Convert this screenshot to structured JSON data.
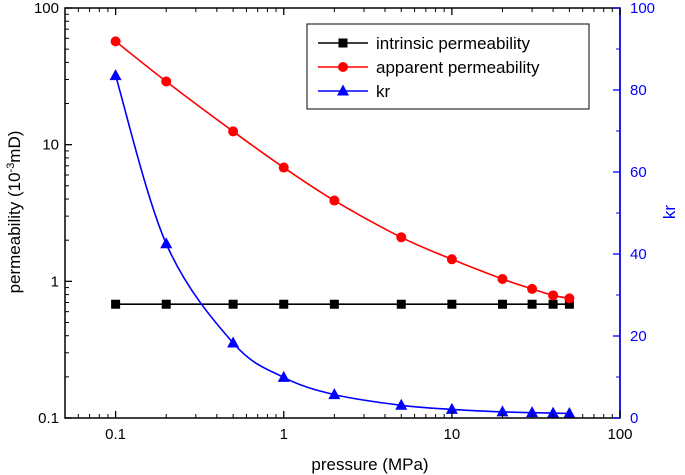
{
  "chart_data": {
    "type": "line",
    "xlabel": "pressure (MPa)",
    "ylabel_main": "permeability (10",
    "ylabel_sup": "-3",
    "ylabel_unit": "mD)",
    "y2label": "kr",
    "xscale": "log",
    "yscale": "log",
    "xlim": [
      0.05,
      100
    ],
    "ylim": [
      0.1,
      100
    ],
    "y2lim": [
      0,
      100
    ],
    "x_ticks": [
      0.1,
      1,
      10,
      100
    ],
    "x_tick_labels": [
      "0.1",
      "1",
      "10",
      "100"
    ],
    "y_ticks": [
      0.1,
      1,
      10,
      100
    ],
    "y_tick_labels": [
      "0.1",
      "1",
      "10",
      "100"
    ],
    "y2_ticks": [
      0,
      20,
      40,
      60,
      80,
      100
    ],
    "y2_tick_labels": [
      "0",
      "20",
      "40",
      "60",
      "80",
      "100"
    ],
    "grid": false,
    "legend_position": "top-right",
    "x": [
      0.1,
      0.2,
      0.5,
      1,
      2,
      5,
      10,
      20,
      30,
      40,
      50
    ],
    "series": [
      {
        "name": "intrinsic permeability",
        "axis": "left",
        "color": "#000000",
        "marker": "square",
        "values": [
          0.68,
          0.68,
          0.68,
          0.68,
          0.68,
          0.68,
          0.68,
          0.68,
          0.68,
          0.68,
          0.68
        ]
      },
      {
        "name": "apparent permeability",
        "axis": "left",
        "color": "#ff0000",
        "marker": "circle",
        "values": [
          57,
          29,
          12.5,
          6.8,
          3.9,
          2.1,
          1.45,
          1.04,
          0.88,
          0.79,
          0.75
        ]
      },
      {
        "name": "kr",
        "axis": "right",
        "color": "#0000ff",
        "marker": "triangle",
        "values": [
          83.5,
          42.5,
          18.3,
          9.9,
          5.7,
          3.1,
          2.1,
          1.5,
          1.3,
          1.2,
          1.1
        ]
      }
    ]
  }
}
